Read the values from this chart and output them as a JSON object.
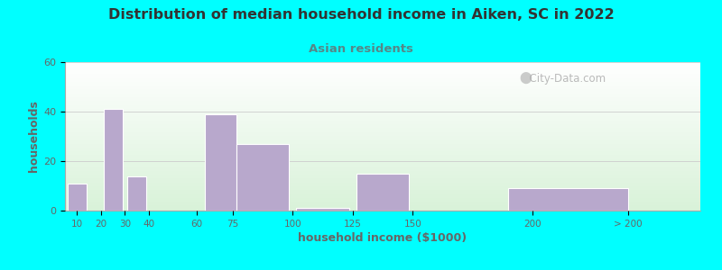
{
  "title": "Distribution of median household income in Aiken, SC in 2022",
  "subtitle": "Asian residents",
  "xlabel": "household income ($1000)",
  "ylabel": "households",
  "background_outer": "#00FFFF",
  "bar_color": "#b8a8cc",
  "bar_edge_color": "#ffffff",
  "title_color": "#333333",
  "subtitle_color": "#558888",
  "axis_color": "#666666",
  "watermark": "City-Data.com",
  "ylim": [
    0,
    60
  ],
  "yticks": [
    0,
    20,
    40,
    60
  ],
  "xtick_labels": [
    "10",
    "20",
    "30",
    "40",
    "60",
    "75",
    "100",
    "125",
    "150",
    "200",
    "> 200"
  ],
  "bar_lefts": [
    10,
    20,
    25,
    35,
    60,
    70,
    87.5,
    112.5,
    137.5,
    175,
    215
  ],
  "bar_widths": [
    8,
    8,
    8,
    8,
    8,
    13,
    22,
    22,
    22,
    22,
    50
  ],
  "bar_heights": [
    11,
    0,
    41,
    14,
    0,
    39,
    27,
    1,
    15,
    0,
    9
  ],
  "xtick_pos": [
    10,
    20,
    30,
    40,
    60,
    75,
    100,
    125,
    150,
    200,
    240
  ],
  "xmin": 5,
  "xmax": 270
}
